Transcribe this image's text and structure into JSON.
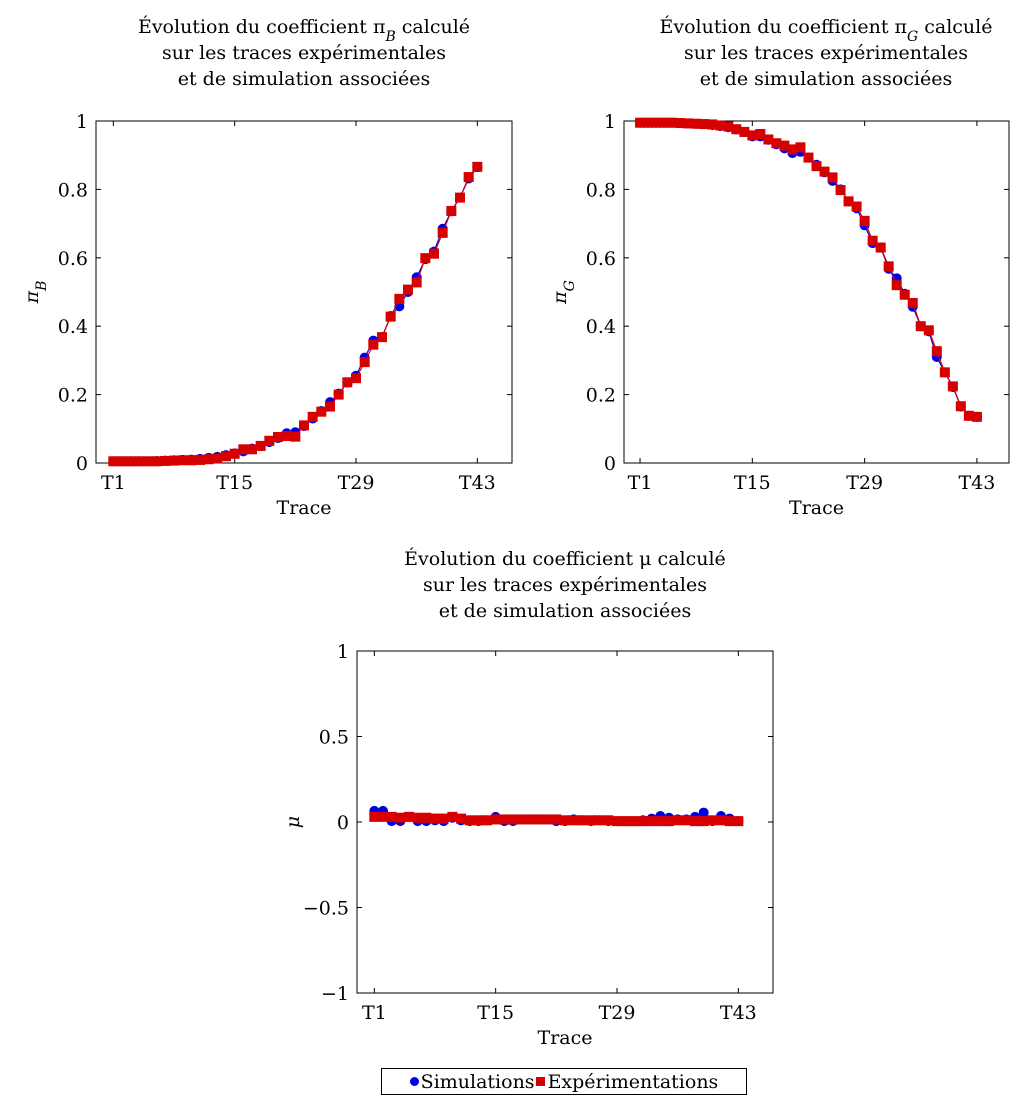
{
  "legend": {
    "simulations": "Simulations",
    "experimentations": "Expérimentations"
  },
  "colors": {
    "simulations": "#0000e6",
    "experimentations": "#d60000"
  },
  "chart_data": [
    {
      "type": "line",
      "title_lines": [
        "Évolution du coefficient π_B calculé",
        "sur les traces expérimentales",
        "et de simulation associées"
      ],
      "xlabel": "Trace",
      "ylabel": "π_B",
      "x_ticks": [
        "T1",
        "T15",
        "T29",
        "T43"
      ],
      "x_tick_positions": [
        1,
        15,
        29,
        43
      ],
      "y_ticks": [
        "0",
        "0.2",
        "0.4",
        "0.6",
        "0.8",
        "1"
      ],
      "y_tick_values": [
        0,
        0.2,
        0.4,
        0.6,
        0.8,
        1
      ],
      "xlim": [
        -1,
        47
      ],
      "ylim": [
        0,
        1
      ],
      "x": [
        1,
        2,
        3,
        4,
        5,
        6,
        7,
        8,
        9,
        10,
        11,
        12,
        13,
        14,
        15,
        16,
        17,
        18,
        19,
        20,
        21,
        22,
        23,
        24,
        25,
        26,
        27,
        28,
        29,
        30,
        31,
        32,
        33,
        34,
        35,
        36,
        37,
        38,
        39,
        40,
        41,
        42,
        43
      ],
      "series": [
        {
          "name": "Simulations",
          "marker": "circle",
          "values": [
            0.005,
            0.005,
            0.005,
            0.005,
            0.005,
            0.006,
            0.007,
            0.008,
            0.009,
            0.01,
            0.012,
            0.015,
            0.018,
            0.023,
            0.028,
            0.034,
            0.042,
            0.05,
            0.061,
            0.073,
            0.087,
            0.09,
            0.108,
            0.13,
            0.152,
            0.178,
            0.203,
            0.235,
            0.255,
            0.308,
            0.358,
            0.368,
            0.43,
            0.458,
            0.5,
            0.543,
            0.596,
            0.618,
            0.685,
            0.736,
            0.776,
            0.832,
            0.865
          ]
        },
        {
          "name": "Expérimentations",
          "marker": "square",
          "values": [
            0.005,
            0.005,
            0.005,
            0.005,
            0.005,
            0.005,
            0.006,
            0.007,
            0.008,
            0.008,
            0.009,
            0.011,
            0.013,
            0.02,
            0.027,
            0.04,
            0.04,
            0.05,
            0.065,
            0.076,
            0.079,
            0.077,
            0.11,
            0.135,
            0.15,
            0.165,
            0.2,
            0.236,
            0.248,
            0.295,
            0.346,
            0.368,
            0.428,
            0.48,
            0.507,
            0.528,
            0.599,
            0.612,
            0.673,
            0.737,
            0.776,
            0.836,
            0.866
          ]
        }
      ]
    },
    {
      "type": "line",
      "title_lines": [
        "Évolution du coefficient π_G calculé",
        "sur les traces expérimentales",
        "et de simulation associées"
      ],
      "xlabel": "Trace",
      "ylabel": "π_G",
      "x_ticks": [
        "T1",
        "T15",
        "T29",
        "T43"
      ],
      "x_tick_positions": [
        1,
        15,
        29,
        43
      ],
      "y_ticks": [
        "0",
        "0.2",
        "0.4",
        "0.6",
        "0.8",
        "1"
      ],
      "y_tick_values": [
        0,
        0.2,
        0.4,
        0.6,
        0.8,
        1
      ],
      "xlim": [
        -1,
        47
      ],
      "ylim": [
        0,
        1
      ],
      "x": [
        1,
        2,
        3,
        4,
        5,
        6,
        7,
        8,
        9,
        10,
        11,
        12,
        13,
        14,
        15,
        16,
        17,
        18,
        19,
        20,
        21,
        22,
        23,
        24,
        25,
        26,
        27,
        28,
        29,
        30,
        31,
        32,
        33,
        34,
        35,
        36,
        37,
        38,
        39,
        40,
        41,
        42,
        43
      ],
      "series": [
        {
          "name": "Simulations",
          "marker": "circle",
          "values": [
            0.995,
            0.995,
            0.995,
            0.995,
            0.995,
            0.994,
            0.993,
            0.992,
            0.991,
            0.988,
            0.985,
            0.982,
            0.975,
            0.968,
            0.955,
            0.955,
            0.945,
            0.932,
            0.92,
            0.906,
            0.91,
            0.893,
            0.872,
            0.85,
            0.825,
            0.8,
            0.765,
            0.745,
            0.695,
            0.643,
            0.63,
            0.568,
            0.54,
            0.495,
            0.457,
            0.4,
            0.385,
            0.31,
            0.265,
            0.222,
            0.165,
            0.138,
            0.135
          ]
        },
        {
          "name": "Expérimentations",
          "marker": "square",
          "values": [
            0.995,
            0.995,
            0.995,
            0.995,
            0.995,
            0.994,
            0.993,
            0.992,
            0.991,
            0.99,
            0.987,
            0.984,
            0.976,
            0.968,
            0.958,
            0.962,
            0.946,
            0.935,
            0.928,
            0.917,
            0.923,
            0.893,
            0.868,
            0.852,
            0.835,
            0.798,
            0.765,
            0.75,
            0.708,
            0.65,
            0.63,
            0.575,
            0.52,
            0.492,
            0.468,
            0.4,
            0.388,
            0.327,
            0.265,
            0.224,
            0.166,
            0.138,
            0.135
          ]
        }
      ]
    },
    {
      "type": "line",
      "title_lines": [
        "Évolution du coefficient μ calculé",
        "sur les traces expérimentales",
        "et de simulation associées"
      ],
      "xlabel": "Trace",
      "ylabel": "μ",
      "x_ticks": [
        "T1",
        "T15",
        "T29",
        "T43"
      ],
      "x_tick_positions": [
        1,
        15,
        29,
        43
      ],
      "y_ticks": [
        "−1",
        "−0.5",
        "0",
        "0.5",
        "1"
      ],
      "y_tick_values": [
        -1,
        -0.5,
        0,
        0.5,
        1
      ],
      "xlim": [
        -1,
        47
      ],
      "ylim": [
        -1,
        1
      ],
      "x": [
        1,
        2,
        3,
        4,
        5,
        6,
        7,
        8,
        9,
        10,
        11,
        12,
        13,
        14,
        15,
        16,
        17,
        18,
        19,
        20,
        21,
        22,
        23,
        24,
        25,
        26,
        27,
        28,
        29,
        30,
        31,
        32,
        33,
        34,
        35,
        36,
        37,
        38,
        39,
        40,
        41,
        42,
        43
      ],
      "series": [
        {
          "name": "Simulations",
          "marker": "circle",
          "values": [
            0.065,
            0.065,
            0.005,
            0.005,
            0.03,
            0.005,
            0.005,
            0.01,
            0.005,
            0.025,
            0.01,
            0.005,
            0.005,
            0.01,
            0.03,
            0.005,
            0.005,
            0.015,
            0.015,
            0.015,
            0.015,
            0.005,
            0.005,
            0.015,
            0.01,
            0.005,
            0.01,
            0.005,
            0.005,
            0.005,
            0.005,
            0.01,
            0.02,
            0.035,
            0.025,
            0.015,
            0.015,
            0.03,
            0.055,
            0.005,
            0.035,
            0.02,
            0.005
          ]
        },
        {
          "name": "Expérimentations",
          "marker": "square",
          "values": [
            0.03,
            0.03,
            0.03,
            0.025,
            0.03,
            0.025,
            0.025,
            0.02,
            0.02,
            0.03,
            0.02,
            0.01,
            0.01,
            0.01,
            0.015,
            0.015,
            0.015,
            0.015,
            0.015,
            0.015,
            0.015,
            0.015,
            0.01,
            0.01,
            0.01,
            0.01,
            0.01,
            0.01,
            0.005,
            0.005,
            0.005,
            0.005,
            0.005,
            0.005,
            0.005,
            0.01,
            0.01,
            0.005,
            0.005,
            0.01,
            0.01,
            0.005,
            0.005
          ]
        }
      ]
    }
  ]
}
